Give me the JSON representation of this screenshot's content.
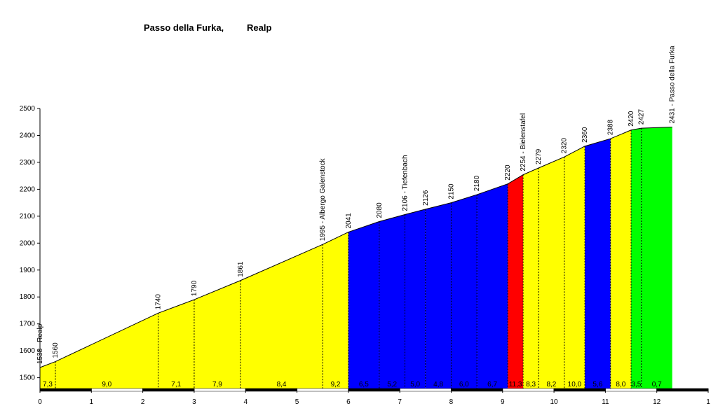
{
  "chart_data": {
    "type": "climb-profile",
    "title": "Passo della Furka,",
    "subtitle": "Realp",
    "x": [
      0,
      0.3,
      2.3,
      3.0,
      3.9,
      5.5,
      6.0,
      6.6,
      7.1,
      7.5,
      8.0,
      8.5,
      9.1,
      9.4,
      9.7,
      10.2,
      10.6,
      11.1,
      11.5,
      11.7,
      12.3
    ],
    "values": [
      1538,
      1560,
      1740,
      1790,
      1861,
      1995,
      2041,
      2080,
      2106,
      2126,
      2150,
      2180,
      2220,
      2254,
      2279,
      2320,
      2360,
      2388,
      2420,
      2427,
      2431
    ],
    "value_labels": [
      "1538 - Realp",
      "1560",
      "1740",
      "1790",
      "1861",
      "1995 - Albergo Galenstock",
      "2041",
      "2080",
      "2106 - Tiefenbach",
      "2126",
      "2150",
      "2180",
      "2220",
      "2254 - Bielenstafel",
      "2279",
      "2320",
      "2360",
      "2388",
      "2420",
      "2427",
      "2431 - Passo della Furka"
    ],
    "gradients": [
      7.3,
      9.0,
      7.1,
      7.9,
      8.4,
      9.2,
      6.5,
      5.2,
      5.0,
      4.8,
      6.0,
      6.7,
      11.3,
      8.3,
      8.2,
      10.0,
      5.6,
      8.0,
      3.5,
      0.7
    ],
    "gradient_labels": [
      "7,3",
      "9,0",
      "7,1",
      "7,9",
      "8,4",
      "9,2",
      "6,5",
      "5,2",
      "5,0",
      "4,8",
      "6,0",
      "6,7",
      "11,3",
      "8,3",
      "8,2",
      "10,0",
      "5,6",
      "8,0",
      "3,5",
      "0,7"
    ],
    "colors": [
      "#ffff00",
      "#ffff00",
      "#ffff00",
      "#ffff00",
      "#ffff00",
      "#ffff00",
      "#0000ff",
      "#0000ff",
      "#0000ff",
      "#0000ff",
      "#0000ff",
      "#0000ff",
      "#ff0000",
      "#ffff00",
      "#ffff00",
      "#ffff00",
      "#0000ff",
      "#ffff00",
      "#00ff00",
      "#00ff00"
    ],
    "xlim": [
      0,
      13
    ],
    "xticks": [
      0,
      1,
      2,
      3,
      4,
      5,
      6,
      7,
      8,
      9,
      10,
      11,
      12,
      {
        "value": 13,
        "label": "1"
      }
    ],
    "ylim": [
      1460,
      2500
    ],
    "yticks": [
      1500,
      1600,
      1700,
      1800,
      1900,
      2000,
      2100,
      2200,
      2300,
      2400,
      2500
    ]
  }
}
